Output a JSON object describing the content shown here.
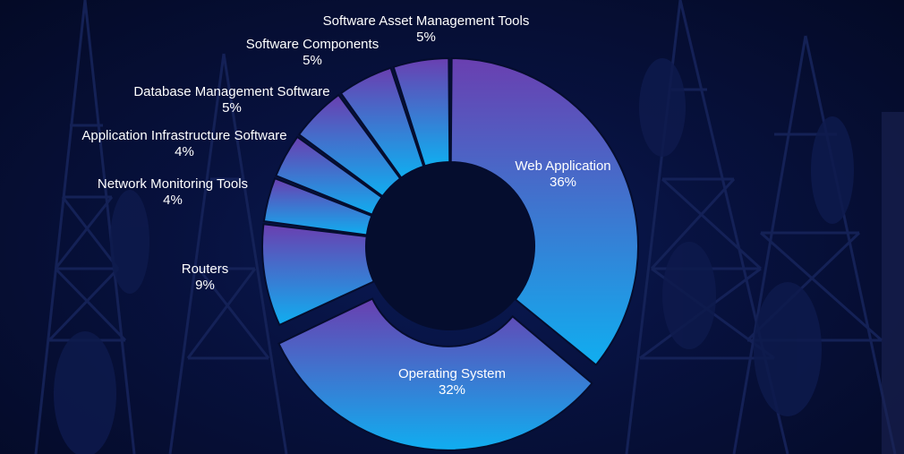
{
  "colors": {
    "background": "#07113d",
    "slice_top": "#6a3fb0",
    "slice_bottom": "#10aef0",
    "hole": "#050d2e",
    "label": "#ffffff"
  },
  "chart_data": {
    "type": "pie",
    "variant": "donut",
    "title": "",
    "slices": [
      {
        "label": "Web Application",
        "value": 36,
        "display": "36%",
        "exploded": false
      },
      {
        "label": "Operating System",
        "value": 32,
        "display": "32%",
        "exploded": true
      },
      {
        "label": "Routers",
        "value": 9,
        "display": "9%",
        "exploded": false
      },
      {
        "label": "Network Monitoring Tools",
        "value": 4,
        "display": "4%",
        "exploded": false
      },
      {
        "label": "Application Infrastructure Software",
        "value": 4,
        "display": "4%",
        "exploded": false
      },
      {
        "label": "Database Management Software",
        "value": 5,
        "display": "5%",
        "exploded": false
      },
      {
        "label": "Software Components",
        "value": 5,
        "display": "5%",
        "exploded": false
      },
      {
        "label": "Software Asset Management Tools",
        "value": 5,
        "display": "5%",
        "exploded": false
      }
    ],
    "legend": "none"
  }
}
